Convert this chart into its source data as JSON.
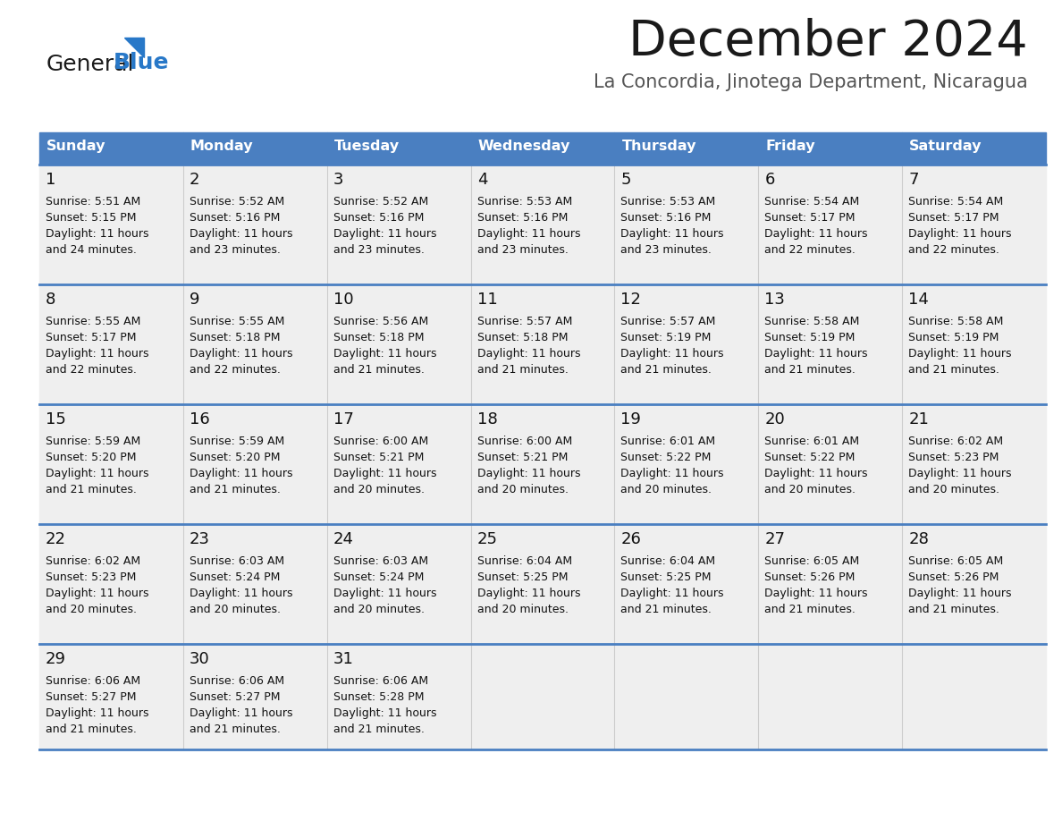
{
  "title": "December 2024",
  "subtitle": "La Concordia, Jinotega Department, Nicaragua",
  "header_color": "#4a7fc1",
  "header_text_color": "#FFFFFF",
  "bg_color": "#FFFFFF",
  "cell_bg_color": "#EFEFEF",
  "separator_color": "#4a7fc1",
  "text_color": "#111111",
  "day_names": [
    "Sunday",
    "Monday",
    "Tuesday",
    "Wednesday",
    "Thursday",
    "Friday",
    "Saturday"
  ],
  "days": [
    {
      "day": 1,
      "col": 0,
      "row": 0,
      "sunrise": "5:51 AM",
      "sunset": "5:15 PM",
      "daylight": "11 hours and 24 minutes."
    },
    {
      "day": 2,
      "col": 1,
      "row": 0,
      "sunrise": "5:52 AM",
      "sunset": "5:16 PM",
      "daylight": "11 hours and 23 minutes."
    },
    {
      "day": 3,
      "col": 2,
      "row": 0,
      "sunrise": "5:52 AM",
      "sunset": "5:16 PM",
      "daylight": "11 hours and 23 minutes."
    },
    {
      "day": 4,
      "col": 3,
      "row": 0,
      "sunrise": "5:53 AM",
      "sunset": "5:16 PM",
      "daylight": "11 hours and 23 minutes."
    },
    {
      "day": 5,
      "col": 4,
      "row": 0,
      "sunrise": "5:53 AM",
      "sunset": "5:16 PM",
      "daylight": "11 hours and 23 minutes."
    },
    {
      "day": 6,
      "col": 5,
      "row": 0,
      "sunrise": "5:54 AM",
      "sunset": "5:17 PM",
      "daylight": "11 hours and 22 minutes."
    },
    {
      "day": 7,
      "col": 6,
      "row": 0,
      "sunrise": "5:54 AM",
      "sunset": "5:17 PM",
      "daylight": "11 hours and 22 minutes."
    },
    {
      "day": 8,
      "col": 0,
      "row": 1,
      "sunrise": "5:55 AM",
      "sunset": "5:17 PM",
      "daylight": "11 hours and 22 minutes."
    },
    {
      "day": 9,
      "col": 1,
      "row": 1,
      "sunrise": "5:55 AM",
      "sunset": "5:18 PM",
      "daylight": "11 hours and 22 minutes."
    },
    {
      "day": 10,
      "col": 2,
      "row": 1,
      "sunrise": "5:56 AM",
      "sunset": "5:18 PM",
      "daylight": "11 hours and 21 minutes."
    },
    {
      "day": 11,
      "col": 3,
      "row": 1,
      "sunrise": "5:57 AM",
      "sunset": "5:18 PM",
      "daylight": "11 hours and 21 minutes."
    },
    {
      "day": 12,
      "col": 4,
      "row": 1,
      "sunrise": "5:57 AM",
      "sunset": "5:19 PM",
      "daylight": "11 hours and 21 minutes."
    },
    {
      "day": 13,
      "col": 5,
      "row": 1,
      "sunrise": "5:58 AM",
      "sunset": "5:19 PM",
      "daylight": "11 hours and 21 minutes."
    },
    {
      "day": 14,
      "col": 6,
      "row": 1,
      "sunrise": "5:58 AM",
      "sunset": "5:19 PM",
      "daylight": "11 hours and 21 minutes."
    },
    {
      "day": 15,
      "col": 0,
      "row": 2,
      "sunrise": "5:59 AM",
      "sunset": "5:20 PM",
      "daylight": "11 hours and 21 minutes."
    },
    {
      "day": 16,
      "col": 1,
      "row": 2,
      "sunrise": "5:59 AM",
      "sunset": "5:20 PM",
      "daylight": "11 hours and 21 minutes."
    },
    {
      "day": 17,
      "col": 2,
      "row": 2,
      "sunrise": "6:00 AM",
      "sunset": "5:21 PM",
      "daylight": "11 hours and 20 minutes."
    },
    {
      "day": 18,
      "col": 3,
      "row": 2,
      "sunrise": "6:00 AM",
      "sunset": "5:21 PM",
      "daylight": "11 hours and 20 minutes."
    },
    {
      "day": 19,
      "col": 4,
      "row": 2,
      "sunrise": "6:01 AM",
      "sunset": "5:22 PM",
      "daylight": "11 hours and 20 minutes."
    },
    {
      "day": 20,
      "col": 5,
      "row": 2,
      "sunrise": "6:01 AM",
      "sunset": "5:22 PM",
      "daylight": "11 hours and 20 minutes."
    },
    {
      "day": 21,
      "col": 6,
      "row": 2,
      "sunrise": "6:02 AM",
      "sunset": "5:23 PM",
      "daylight": "11 hours and 20 minutes."
    },
    {
      "day": 22,
      "col": 0,
      "row": 3,
      "sunrise": "6:02 AM",
      "sunset": "5:23 PM",
      "daylight": "11 hours and 20 minutes."
    },
    {
      "day": 23,
      "col": 1,
      "row": 3,
      "sunrise": "6:03 AM",
      "sunset": "5:24 PM",
      "daylight": "11 hours and 20 minutes."
    },
    {
      "day": 24,
      "col": 2,
      "row": 3,
      "sunrise": "6:03 AM",
      "sunset": "5:24 PM",
      "daylight": "11 hours and 20 minutes."
    },
    {
      "day": 25,
      "col": 3,
      "row": 3,
      "sunrise": "6:04 AM",
      "sunset": "5:25 PM",
      "daylight": "11 hours and 20 minutes."
    },
    {
      "day": 26,
      "col": 4,
      "row": 3,
      "sunrise": "6:04 AM",
      "sunset": "5:25 PM",
      "daylight": "11 hours and 21 minutes."
    },
    {
      "day": 27,
      "col": 5,
      "row": 3,
      "sunrise": "6:05 AM",
      "sunset": "5:26 PM",
      "daylight": "11 hours and 21 minutes."
    },
    {
      "day": 28,
      "col": 6,
      "row": 3,
      "sunrise": "6:05 AM",
      "sunset": "5:26 PM",
      "daylight": "11 hours and 21 minutes."
    },
    {
      "day": 29,
      "col": 0,
      "row": 4,
      "sunrise": "6:06 AM",
      "sunset": "5:27 PM",
      "daylight": "11 hours and 21 minutes."
    },
    {
      "day": 30,
      "col": 1,
      "row": 4,
      "sunrise": "6:06 AM",
      "sunset": "5:27 PM",
      "daylight": "11 hours and 21 minutes."
    },
    {
      "day": 31,
      "col": 2,
      "row": 4,
      "sunrise": "6:06 AM",
      "sunset": "5:28 PM",
      "daylight": "11 hours and 21 minutes."
    }
  ]
}
